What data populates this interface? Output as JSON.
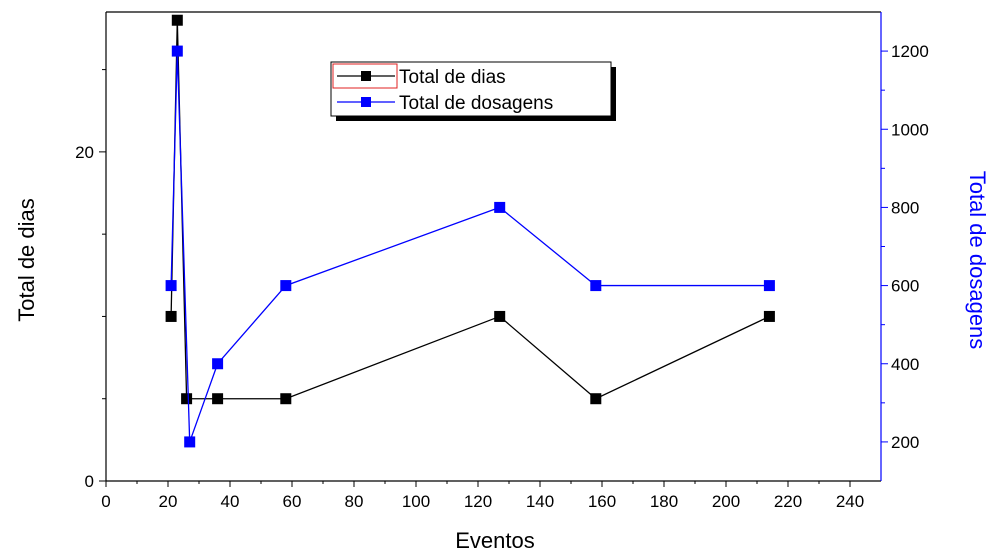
{
  "chart_data": {
    "type": "line",
    "xlabel": "Eventos",
    "ylabel": "Total de dias",
    "y2label": "Total de dosagens",
    "xlim": [
      0,
      250
    ],
    "ylim": [
      0,
      28.5
    ],
    "y2lim": [
      100,
      1300
    ],
    "xticks": [
      0,
      20,
      40,
      60,
      80,
      100,
      120,
      140,
      160,
      180,
      200,
      220,
      240
    ],
    "yticks": [
      0,
      20
    ],
    "y2ticks": [
      200,
      400,
      600,
      800,
      1000,
      1200
    ],
    "grid": false,
    "legend_position": "top-center",
    "series": [
      {
        "name": "Total de dias",
        "axis": "left",
        "color": "#000000",
        "x": [
          21,
          23,
          26,
          36,
          58,
          127,
          158,
          214
        ],
        "y": [
          10,
          28,
          5,
          5,
          5,
          10,
          5,
          10
        ]
      },
      {
        "name": "Total de dosagens",
        "axis": "right",
        "color": "#0000ff",
        "x": [
          21,
          23,
          27,
          36,
          58,
          127,
          158,
          214
        ],
        "y": [
          600,
          1200,
          200,
          400,
          600,
          800,
          600,
          600
        ]
      }
    ]
  }
}
